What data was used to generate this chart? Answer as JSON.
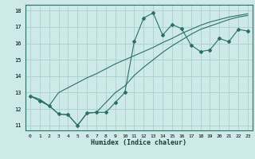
{
  "xlabel": "Humidex (Indice chaleur)",
  "xlim": [
    -0.5,
    23.5
  ],
  "ylim": [
    10.7,
    18.35
  ],
  "yticks": [
    11,
    12,
    13,
    14,
    15,
    16,
    17,
    18
  ],
  "xticks": [
    0,
    1,
    2,
    3,
    4,
    5,
    6,
    7,
    8,
    9,
    10,
    11,
    12,
    13,
    14,
    15,
    16,
    17,
    18,
    19,
    20,
    21,
    22,
    23
  ],
  "bg_color": "#ceeae8",
  "grid_color": "#aacfcc",
  "line_color": "#2a7068",
  "line1_y": [
    12.8,
    12.5,
    12.2,
    11.7,
    11.65,
    11.0,
    11.75,
    11.8,
    11.8,
    12.4,
    13.0,
    16.1,
    17.55,
    17.85,
    16.5,
    17.15,
    16.9,
    15.9,
    15.5,
    15.6,
    16.3,
    16.1,
    16.85,
    16.75
  ],
  "line2_y": [
    12.8,
    12.6,
    12.2,
    13.0,
    13.3,
    13.6,
    13.9,
    14.15,
    14.45,
    14.75,
    15.0,
    15.25,
    15.5,
    15.75,
    16.05,
    16.3,
    16.6,
    16.85,
    17.1,
    17.3,
    17.45,
    17.6,
    17.7,
    17.8
  ],
  "line3_y": [
    12.8,
    12.5,
    12.2,
    11.7,
    11.65,
    11.0,
    11.75,
    11.8,
    12.4,
    13.0,
    13.4,
    14.05,
    14.55,
    15.0,
    15.45,
    15.85,
    16.2,
    16.55,
    16.85,
    17.05,
    17.25,
    17.45,
    17.6,
    17.7
  ]
}
